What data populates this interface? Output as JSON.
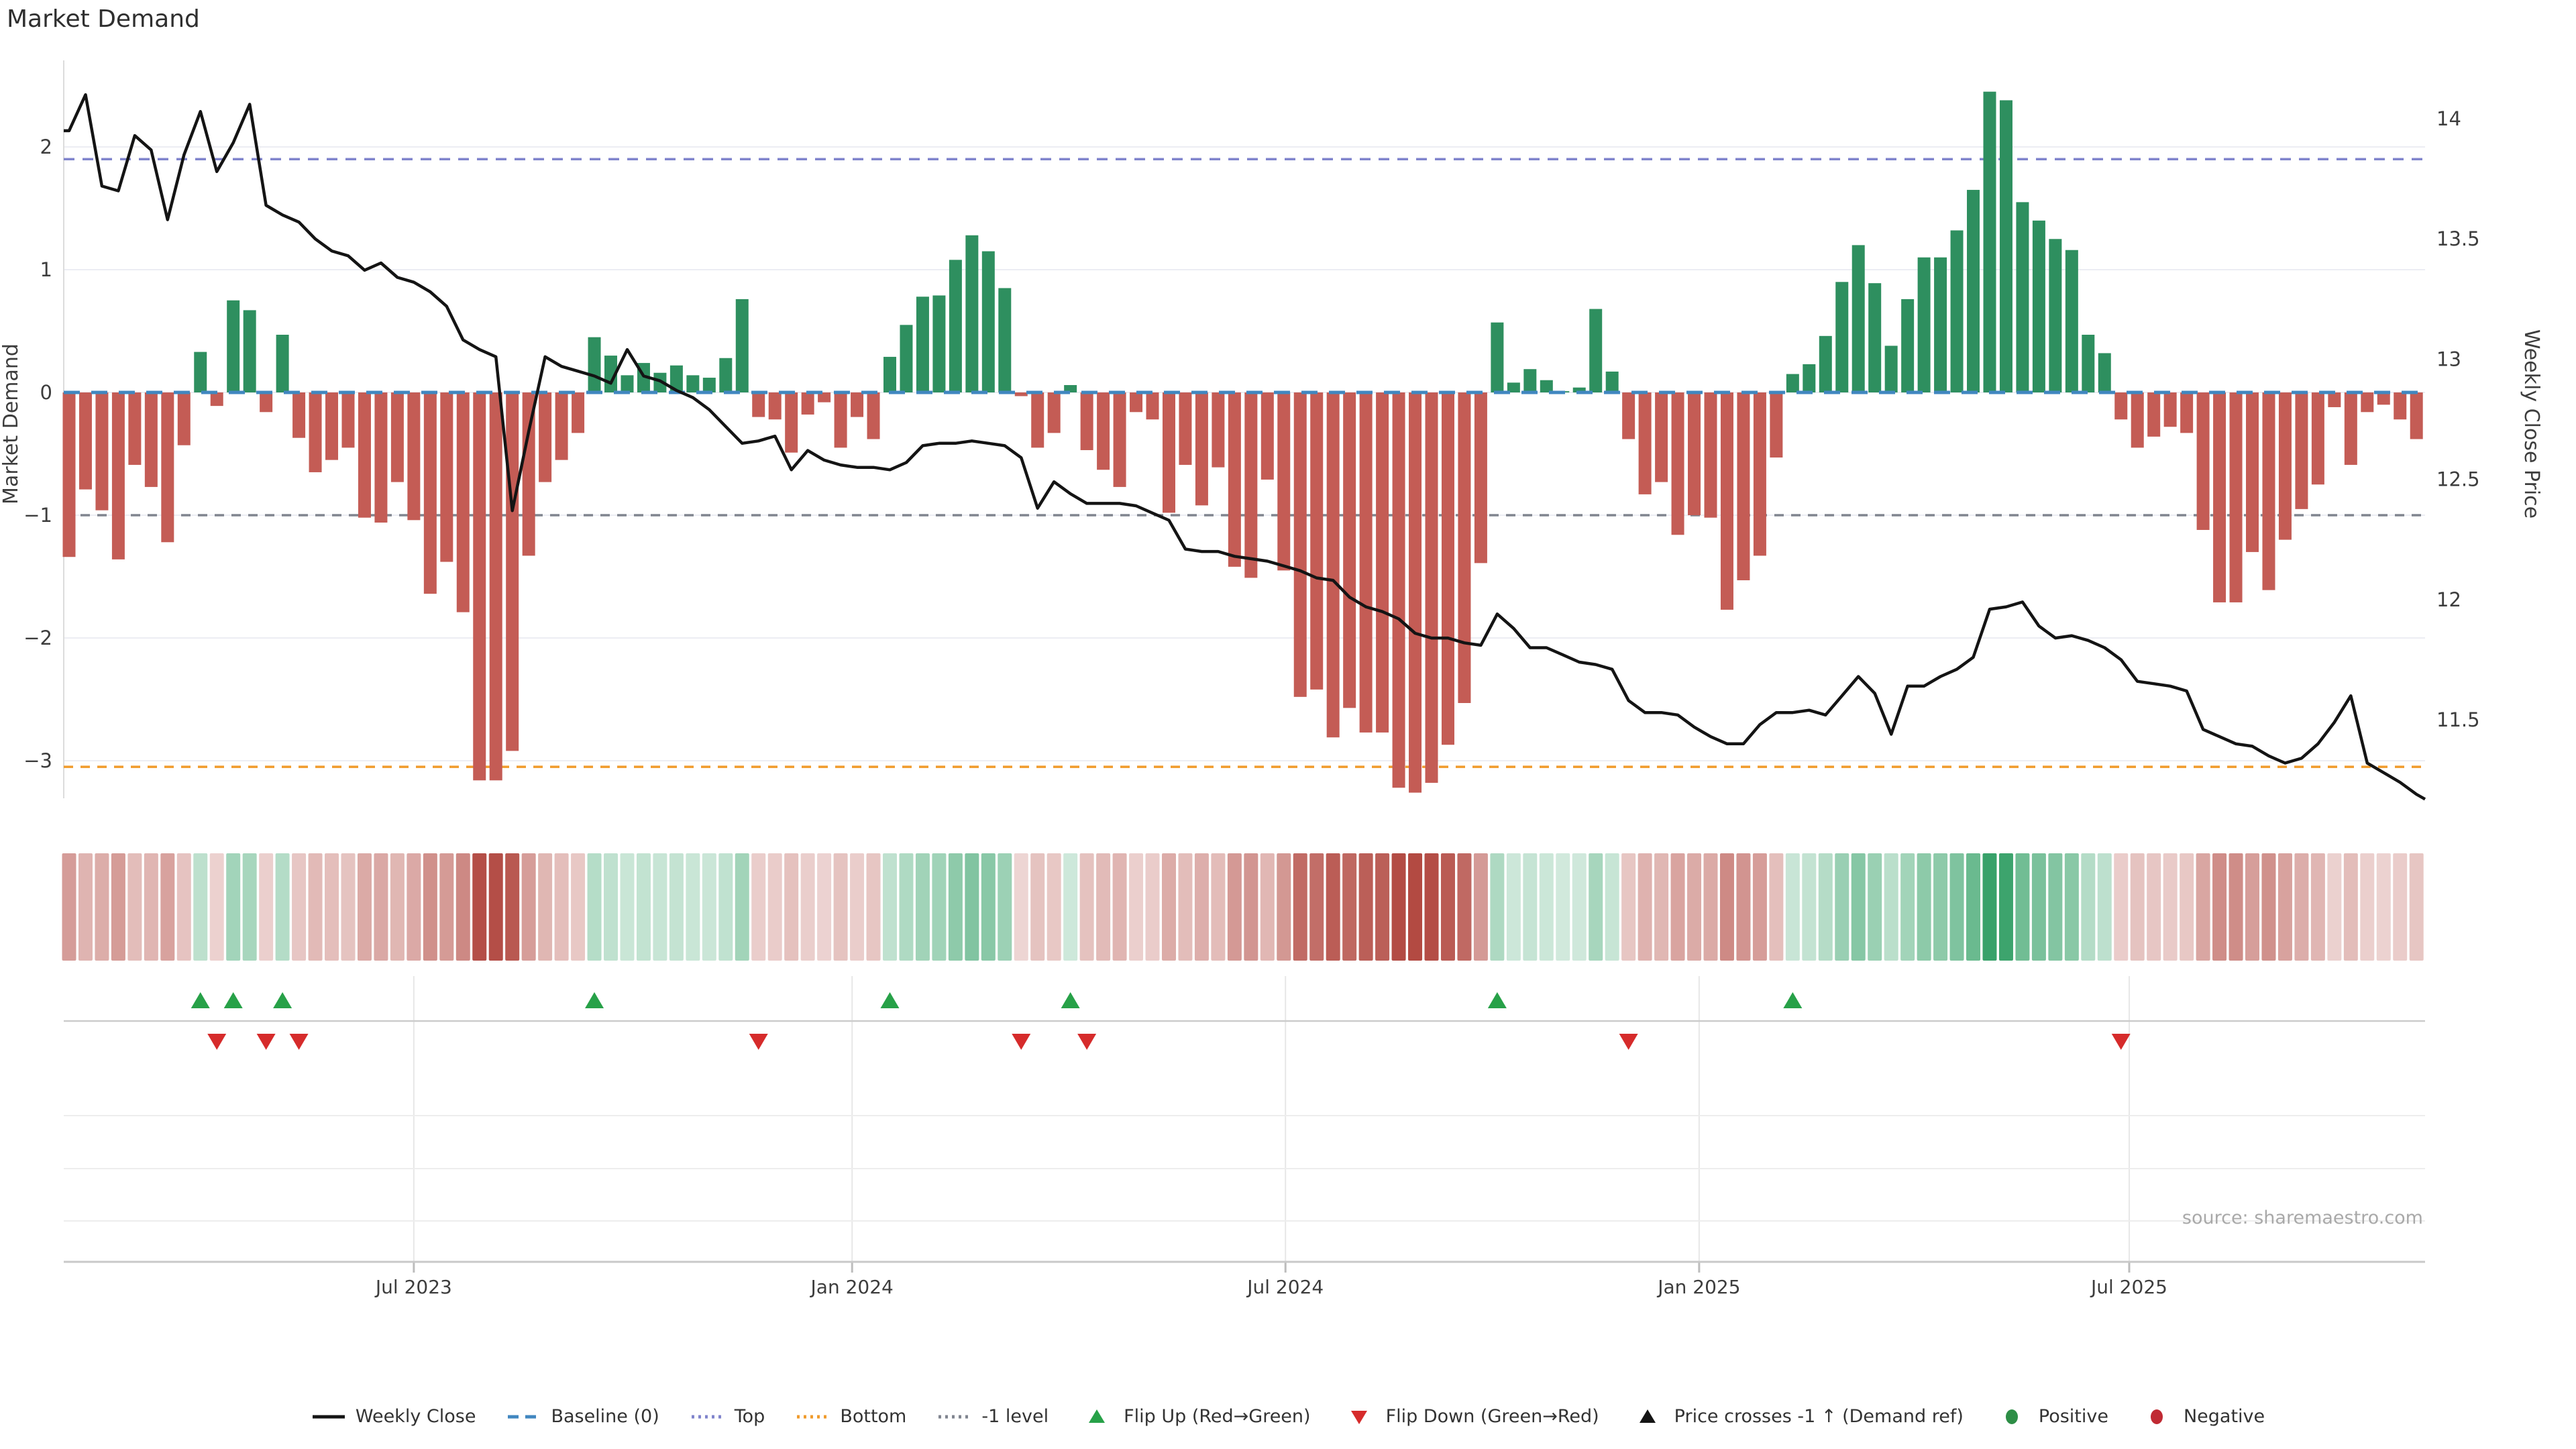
{
  "page": {
    "title": "Market Demand",
    "source": "source: sharemaestro.com"
  },
  "chart_data": {
    "type": "bar+line",
    "title": "Market Demand",
    "left_axis": {
      "label": "Market Demand",
      "tick_labels": [
        "2",
        "1",
        "0",
        "−1",
        "−2",
        "−3"
      ],
      "tick_values": [
        2,
        1,
        0,
        -1,
        -2,
        -3
      ],
      "range": [
        -3.45,
        2.75
      ],
      "grid": true
    },
    "right_axis": {
      "label": "Weekly Close Price",
      "tick_labels": [
        "14",
        "13.5",
        "13",
        "12.5",
        "12",
        "11.5"
      ],
      "tick_values": [
        14,
        13.5,
        13,
        12.5,
        12,
        11.5
      ]
    },
    "x_axis": {
      "tick_labels": [
        "Jul 2023",
        "Jan 2024",
        "Jul 2024",
        "Jan 2025",
        "Jul 2025"
      ],
      "tick_weeks": [
        21,
        47.7,
        74.1,
        99.3,
        125.5
      ]
    },
    "reference_lines": {
      "baseline": {
        "label": "Baseline (0)",
        "value": 0,
        "color": "#4187c0"
      },
      "top": {
        "label": "Top",
        "value": 1.9,
        "color": "#8084cc"
      },
      "bottom": {
        "label": "Bottom",
        "value": -3.05,
        "color": "#f09b2c"
      },
      "minus1": {
        "label": "-1 level",
        "value": -1,
        "color": "#80858f"
      }
    },
    "series": {
      "market_demand_bars": {
        "name": "Market Demand",
        "positive_color": "#2e8f5f",
        "negative_color": "#c45c55",
        "values": [
          -1.34,
          -0.79,
          -0.96,
          -1.36,
          -0.59,
          -0.77,
          -1.22,
          -0.43,
          0.33,
          -0.11,
          0.75,
          0.67,
          -0.16,
          0.47,
          -0.37,
          -0.65,
          -0.55,
          -0.45,
          -1.02,
          -1.06,
          -0.73,
          -1.04,
          -1.64,
          -1.38,
          -1.79,
          -3.16,
          -3.16,
          -2.92,
          -1.33,
          -0.73,
          -0.55,
          -0.33,
          0.45,
          0.3,
          0.14,
          0.24,
          0.16,
          0.22,
          0.14,
          0.12,
          0.28,
          0.76,
          -0.2,
          -0.22,
          -0.49,
          -0.18,
          -0.08,
          -0.45,
          -0.2,
          -0.38,
          0.29,
          0.55,
          0.78,
          0.79,
          1.08,
          1.28,
          1.15,
          0.85,
          -0.03,
          -0.45,
          -0.33,
          0.06,
          -0.47,
          -0.63,
          -0.77,
          -0.16,
          -0.22,
          -0.98,
          -0.59,
          -0.92,
          -0.61,
          -1.42,
          -1.51,
          -0.71,
          -1.45,
          -2.48,
          -2.42,
          -2.81,
          -2.57,
          -2.77,
          -2.77,
          -3.22,
          -3.26,
          -3.18,
          -2.87,
          -2.53,
          -1.39,
          0.57,
          0.08,
          0.19,
          0.1,
          0.01,
          0.04,
          0.68,
          0.17,
          -0.38,
          -0.83,
          -0.73,
          -1.16,
          -1.0,
          -1.02,
          -1.77,
          -1.53,
          -1.33,
          -0.53,
          0.15,
          0.23,
          0.46,
          0.9,
          1.2,
          0.89,
          0.38,
          0.76,
          1.1,
          1.1,
          1.32,
          1.65,
          2.45,
          2.38,
          1.55,
          1.4,
          1.25,
          1.16,
          0.47,
          0.32,
          -0.22,
          -0.45,
          -0.36,
          -0.28,
          -0.33,
          -1.12,
          -1.71,
          -1.71,
          -1.3,
          -1.61,
          -1.2,
          -0.95,
          -0.75,
          -0.12,
          -0.59,
          -0.16,
          -0.1,
          -0.22,
          -0.38
        ]
      },
      "weekly_close_line": {
        "name": "Weekly Close",
        "color": "#141414",
        "edge_extension": 11.17,
        "values": [
          13.95,
          14.1,
          13.72,
          13.7,
          13.93,
          13.87,
          13.58,
          13.85,
          14.03,
          13.78,
          13.9,
          14.06,
          13.64,
          13.6,
          13.57,
          13.5,
          13.45,
          13.43,
          13.37,
          13.4,
          13.34,
          13.32,
          13.28,
          13.22,
          13.08,
          13.04,
          13.01,
          12.37,
          12.7,
          13.01,
          12.97,
          12.95,
          12.93,
          12.9,
          13.04,
          12.93,
          12.91,
          12.87,
          12.84,
          12.79,
          12.72,
          12.65,
          12.66,
          12.68,
          12.54,
          12.62,
          12.58,
          12.56,
          12.55,
          12.55,
          12.54,
          12.57,
          12.64,
          12.65,
          12.65,
          12.66,
          12.65,
          12.64,
          12.59,
          12.38,
          12.49,
          12.44,
          12.4,
          12.4,
          12.4,
          12.39,
          12.36,
          12.33,
          12.21,
          12.2,
          12.2,
          12.18,
          12.17,
          12.16,
          12.14,
          12.12,
          12.09,
          12.08,
          12.01,
          11.97,
          11.95,
          11.92,
          11.86,
          11.84,
          11.84,
          11.82,
          11.81,
          11.94,
          11.88,
          11.8,
          11.8,
          11.77,
          11.74,
          11.73,
          11.71,
          11.58,
          11.53,
          11.53,
          11.52,
          11.47,
          11.43,
          11.4,
          11.4,
          11.48,
          11.53,
          11.53,
          11.54,
          11.52,
          11.6,
          11.68,
          11.61,
          11.44,
          11.64,
          11.64,
          11.68,
          11.71,
          11.76,
          11.96,
          11.97,
          11.99,
          11.89,
          11.84,
          11.85,
          11.83,
          11.8,
          11.75,
          11.66,
          11.65,
          11.64,
          11.62,
          11.46,
          11.43,
          11.4,
          11.39,
          11.35,
          11.32,
          11.34,
          11.4,
          11.49,
          11.6,
          11.32,
          11.28,
          11.24,
          11.19
        ]
      }
    },
    "heatmap": {
      "note": "demand values re-colored as red/green intensity strip",
      "positive_base": "#2f9e63",
      "negative_base": "#b0443c"
    },
    "markers": {
      "flip_up": {
        "label": "Flip Up (Red→Green)",
        "color": "#27a148",
        "weeks": [
          8,
          10,
          13,
          32,
          50,
          61,
          87,
          105
        ]
      },
      "flip_down": {
        "label": "Flip Down (Green→Red)",
        "color": "#d62b2b",
        "weeks": [
          9,
          12,
          14,
          42,
          58,
          62,
          95,
          125
        ]
      },
      "price_cross": {
        "label": "Price crosses -1 ↑ (Demand ref)",
        "color": "#141414",
        "weeks": []
      }
    }
  },
  "legend": {
    "items": [
      {
        "label": "Weekly Close",
        "swatch": "line",
        "color": "#141414"
      },
      {
        "label": "Baseline (0)",
        "swatch": "dash",
        "color": "#4187c0"
      },
      {
        "label": "Top",
        "swatch": "dots",
        "color": "#8084cc"
      },
      {
        "label": "Bottom",
        "swatch": "dots",
        "color": "#f09b2c"
      },
      {
        "label": "-1 level",
        "swatch": "dots",
        "color": "#80858f"
      },
      {
        "label": "Flip Up (Red→Green)",
        "swatch": "tri-up",
        "color": "#27a148"
      },
      {
        "label": "Flip Down (Green→Red)",
        "swatch": "tri-down",
        "color": "#d62b2b"
      },
      {
        "label": "Price crosses -1 ↑ (Demand ref)",
        "swatch": "tri-up",
        "color": "#141414"
      },
      {
        "label": "Positive",
        "swatch": "circle",
        "color": "#2d8e46"
      },
      {
        "label": "Negative",
        "swatch": "circle",
        "color": "#c02a33"
      }
    ]
  }
}
